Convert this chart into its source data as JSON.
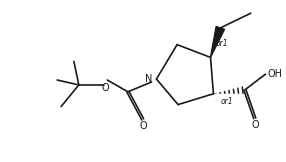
{
  "bg_color": "#ffffff",
  "line_color": "#1a1a1a",
  "figsize": [
    2.86,
    1.62
  ],
  "dpi": 100,
  "lw": 1.2,
  "N_label": "N",
  "O_label": "O",
  "OH_label": "OH",
  "or1_label": "or1"
}
